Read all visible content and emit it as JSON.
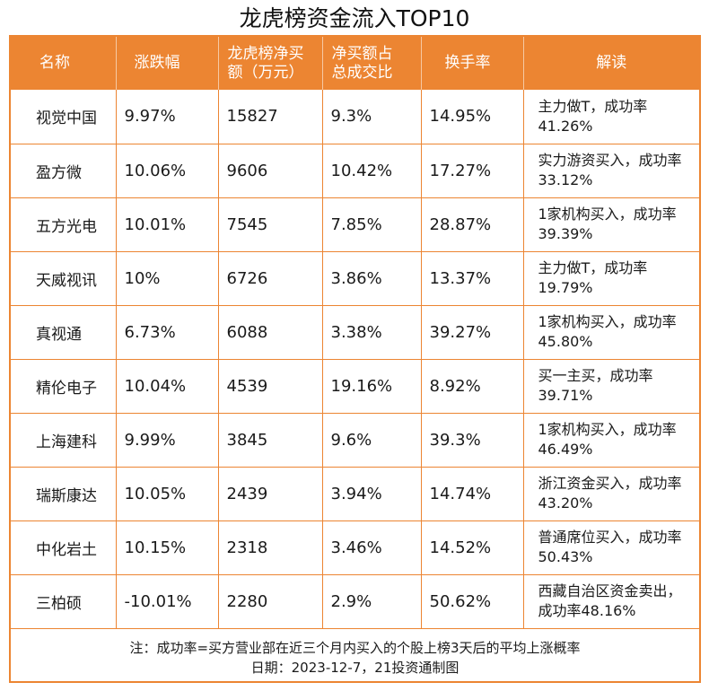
{
  "title": "龙虎榜资金流入TOP10",
  "headers": {
    "name": "名称",
    "change": "涨跌幅",
    "net_buy_line1": "龙虎榜净买",
    "net_buy_line2": "额（万元）",
    "ratio_line1": "净买额占",
    "ratio_line2": "总成交比",
    "turnover": "换手率",
    "analysis": "解读"
  },
  "rows": [
    {
      "name": "视觉中国",
      "change": "9.97%",
      "net_buy": "15827",
      "ratio": "9.3%",
      "turnover": "14.95%",
      "analysis": "主力做T，成功率41.26%"
    },
    {
      "name": "盈方微",
      "change": "10.06%",
      "net_buy": "9606",
      "ratio": "10.42%",
      "turnover": "17.27%",
      "analysis": "实力游资买入，成功率33.12%"
    },
    {
      "name": "五方光电",
      "change": "10.01%",
      "net_buy": "7545",
      "ratio": "7.85%",
      "turnover": "28.87%",
      "analysis": "1家机构买入，成功率39.39%"
    },
    {
      "name": "天威视讯",
      "change": "10%",
      "net_buy": "6726",
      "ratio": "3.86%",
      "turnover": "13.37%",
      "analysis": "主力做T，成功率19.79%"
    },
    {
      "name": "真视通",
      "change": "6.73%",
      "net_buy": "6088",
      "ratio": "3.38%",
      "turnover": "39.27%",
      "analysis": "1家机构买入，成功率45.80%"
    },
    {
      "name": "精伦电子",
      "change": "10.04%",
      "net_buy": "4539",
      "ratio": "19.16%",
      "turnover": "8.92%",
      "analysis": "买一主买，成功率39.71%"
    },
    {
      "name": "上海建科",
      "change": "9.99%",
      "net_buy": "3845",
      "ratio": "9.6%",
      "turnover": "39.3%",
      "analysis": "1家机构买入，成功率46.49%"
    },
    {
      "name": "瑞斯康达",
      "change": "10.05%",
      "net_buy": "2439",
      "ratio": "3.94%",
      "turnover": "14.74%",
      "analysis": "浙江资金买入，成功率43.20%"
    },
    {
      "name": "中化岩土",
      "change": "10.15%",
      "net_buy": "2318",
      "ratio": "3.46%",
      "turnover": "14.52%",
      "analysis": "普通席位买入，成功率50.43%"
    },
    {
      "name": "三柏硕",
      "change": "-10.01%",
      "net_buy": "2280",
      "ratio": "2.9%",
      "turnover": "50.62%",
      "analysis": "西藏自治区资金卖出，成功率48.16%"
    }
  ],
  "footer": {
    "note": "注：成功率=买方营业部在近三个月内买入的个股上榜3天后的平均上涨概率",
    "date": "日期：2023-12-7，21投资通制图"
  },
  "colors": {
    "accent": "#ec8532",
    "header_text": "#ffffff"
  }
}
